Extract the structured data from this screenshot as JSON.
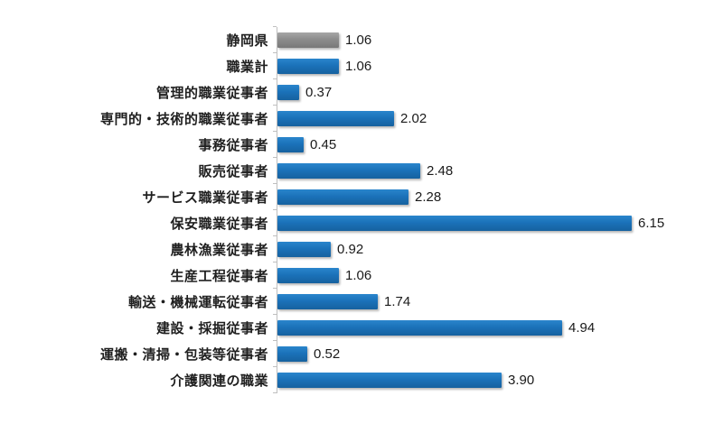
{
  "colors": {
    "bar_blue": "#1B75BC",
    "bar_gray": "#8C8C8C",
    "axis": "#BFBFBF",
    "label_text": "#1F1F1F",
    "value_text": "#1A1A1A",
    "background": "#FFFFFF"
  },
  "chart_data": {
    "type": "bar",
    "orientation": "horizontal",
    "title": "",
    "xlabel": "",
    "ylabel": "",
    "grid": false,
    "legend": false,
    "data_labels": true,
    "xlim": [
      0,
      6.8
    ],
    "categories": [
      "静岡県",
      "職業計",
      "管理的職業従事者",
      "専門的・技術的職業従事者",
      "事務従事者",
      "販売従事者",
      "サービス職業従事者",
      "保安職業従事者",
      "農林漁業従事者",
      "生産工程従事者",
      "輸送・機械運転従事者",
      "建設・採掘従事者",
      "運搬・清掃・包装等従事者",
      "介護関連の職業"
    ],
    "values": [
      1.06,
      1.06,
      0.37,
      2.02,
      0.45,
      2.48,
      2.28,
      6.15,
      0.92,
      1.06,
      1.74,
      4.94,
      0.52,
      3.9
    ],
    "value_labels": [
      "1.06",
      "1.06",
      "0.37",
      "2.02",
      "0.45",
      "2.48",
      "2.28",
      "6.15",
      "0.92",
      "1.06",
      "1.74",
      "4.94",
      "0.52",
      "3.90"
    ],
    "highlight_index": 0,
    "highlight_color_name": "gray",
    "default_color_name": "blue"
  }
}
